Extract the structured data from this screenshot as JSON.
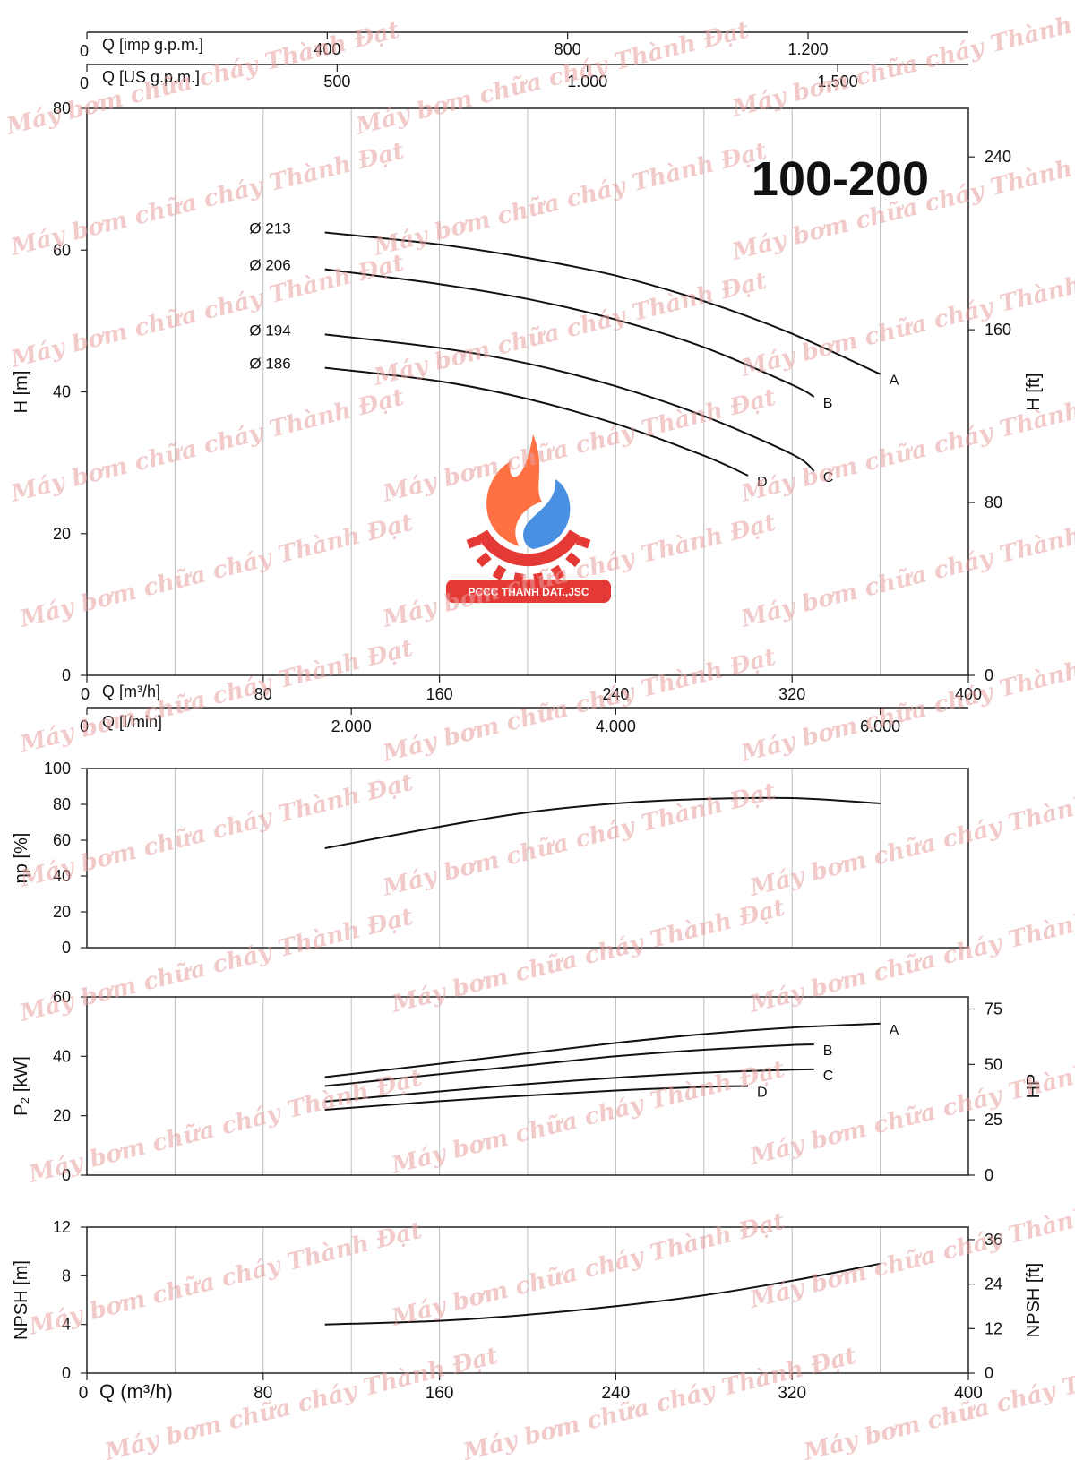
{
  "model": "100-200",
  "watermark": "Máy bơm chữa cháy Thành Đạt",
  "logo_text": "PCCC THANH DAT.,JSC",
  "colors": {
    "curve": "#111111",
    "grid": "#bdbdbd",
    "frame": "#222222",
    "watermark": "#e8a0a0",
    "logo_red": "#e53935",
    "logo_orange": "#ff7043",
    "logo_blue": "#4a90e2"
  },
  "chart_data": [
    {
      "type": "line",
      "name": "head",
      "title": "100-200",
      "xlabel": "Q [m³/h]",
      "ylabel": "H [m]",
      "ylabel_right": "H [ft]",
      "xlim": [
        0,
        400
      ],
      "ylim": [
        0,
        80
      ],
      "yticks": [
        "0",
        "20",
        "40",
        "60",
        "80"
      ],
      "yticks_right": [
        "0",
        "80",
        "160",
        "240"
      ],
      "xticks": [
        "0",
        "80",
        "160",
        "240",
        "320",
        "400"
      ],
      "top_axes": [
        {
          "label": "Q [imp g.p.m.]",
          "ticks": [
            "0",
            "400",
            "800",
            "1.200"
          ],
          "values": [
            0,
            400,
            800,
            1200
          ]
        },
        {
          "label": "Q [US g.p.m.]",
          "ticks": [
            "0",
            "500",
            "1.000",
            "1.500"
          ],
          "values": [
            0,
            500,
            1000,
            1500
          ]
        }
      ],
      "bottom_axis_2": {
        "label": "Q [l/min]",
        "ticks": [
          "0",
          "2.000",
          "4.000",
          "6.000"
        ],
        "values": [
          0,
          2000,
          4000,
          6000
        ]
      },
      "series": [
        {
          "name": "A",
          "diameter": "Ø 213",
          "x": [
            108,
            160,
            200,
            240,
            280,
            320,
            360
          ],
          "y": [
            62.5,
            60.8,
            58.9,
            56.4,
            52.8,
            48.2,
            42.5
          ]
        },
        {
          "name": "B",
          "diameter": "Ø 206",
          "x": [
            108,
            160,
            200,
            240,
            280,
            320,
            330
          ],
          "y": [
            57.3,
            55.2,
            53.1,
            50.2,
            46.3,
            41.0,
            39.3
          ]
        },
        {
          "name": "C",
          "diameter": "Ø 194",
          "x": [
            108,
            160,
            200,
            240,
            280,
            320,
            330
          ],
          "y": [
            48.1,
            46.2,
            44.0,
            40.8,
            36.6,
            31.2,
            28.8
          ]
        },
        {
          "name": "D",
          "diameter": "Ø 186",
          "x": [
            108,
            160,
            200,
            240,
            280,
            300
          ],
          "y": [
            43.4,
            41.5,
            39.0,
            35.5,
            31.0,
            28.2
          ]
        }
      ]
    },
    {
      "type": "line",
      "name": "efficiency",
      "ylabel": "ηp [%]",
      "xlim": [
        0,
        400
      ],
      "ylim": [
        0,
        100
      ],
      "yticks": [
        "0",
        "20",
        "40",
        "60",
        "80",
        "100"
      ],
      "series": [
        {
          "name": "",
          "x": [
            108,
            160,
            200,
            240,
            280,
            320,
            360
          ],
          "y": [
            55.5,
            67.5,
            75.5,
            80.5,
            83.0,
            83.5,
            80.5
          ]
        }
      ]
    },
    {
      "type": "line",
      "name": "power",
      "ylabel": "P₂ [kW]",
      "ylabel_right": "HP",
      "xlim": [
        0,
        400
      ],
      "ylim": [
        0,
        60
      ],
      "yticks": [
        "0",
        "20",
        "40",
        "60"
      ],
      "yticks_right": [
        "0",
        "25",
        "50",
        "75"
      ],
      "series": [
        {
          "name": "A",
          "x": [
            108,
            160,
            200,
            240,
            280,
            320,
            360
          ],
          "y": [
            33.0,
            37.5,
            41.0,
            44.5,
            47.5,
            49.7,
            51.0
          ]
        },
        {
          "name": "B",
          "x": [
            108,
            160,
            200,
            240,
            280,
            320,
            330
          ],
          "y": [
            30.0,
            34.0,
            37.0,
            40.0,
            42.2,
            43.8,
            44.0
          ]
        },
        {
          "name": "C",
          "x": [
            108,
            160,
            200,
            240,
            280,
            320,
            330
          ],
          "y": [
            24.8,
            28.2,
            30.7,
            32.8,
            34.5,
            35.5,
            35.6
          ]
        },
        {
          "name": "D",
          "x": [
            108,
            160,
            200,
            240,
            280,
            300
          ],
          "y": [
            22.0,
            24.9,
            26.8,
            28.5,
            29.7,
            30.0
          ]
        }
      ]
    },
    {
      "type": "line",
      "name": "npsh",
      "xlabel": "Q (m³/h)",
      "ylabel": "NPSH [m]",
      "ylabel_right": "NPSH [ft]",
      "xlim": [
        0,
        400
      ],
      "ylim": [
        0,
        12
      ],
      "yticks": [
        "0",
        "4",
        "8",
        "12"
      ],
      "yticks_right": [
        "0",
        "12",
        "24",
        "36"
      ],
      "xticks": [
        "0",
        "80",
        "160",
        "240",
        "320",
        "400"
      ],
      "series": [
        {
          "name": "",
          "x": [
            108,
            160,
            200,
            240,
            280,
            320,
            360
          ],
          "y": [
            4.0,
            4.3,
            4.8,
            5.5,
            6.4,
            7.6,
            9.0
          ]
        }
      ]
    }
  ]
}
